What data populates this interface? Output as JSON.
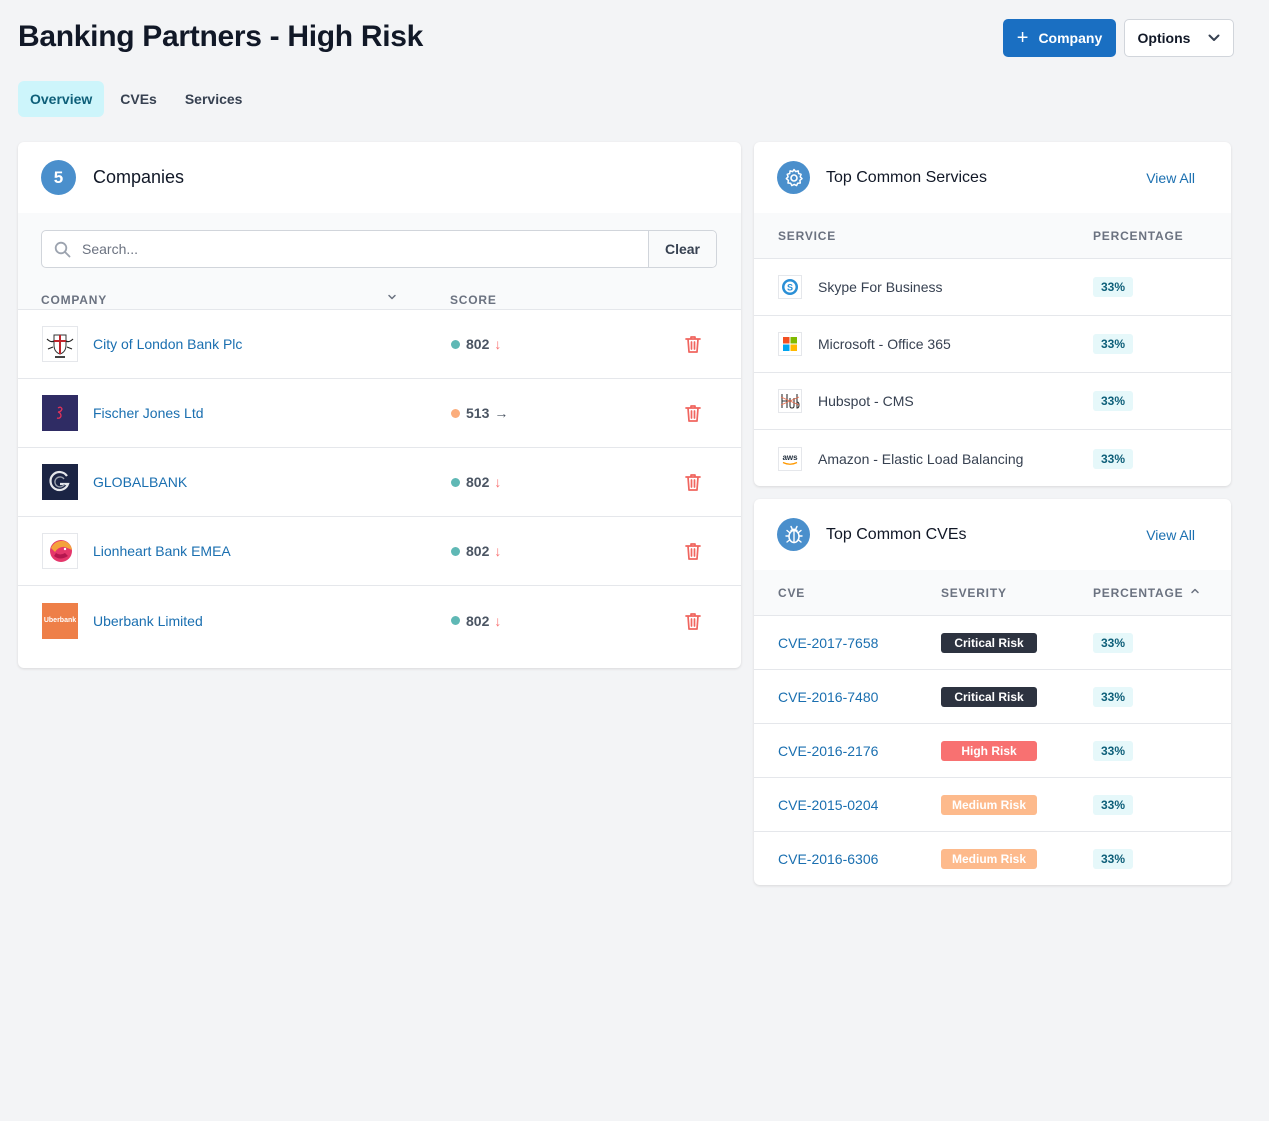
{
  "page": {
    "title": "Banking Partners - High Risk",
    "add_company_label": "Company",
    "options_label": "Options"
  },
  "tabs": [
    {
      "label": "Overview",
      "active": true
    },
    {
      "label": "CVEs",
      "active": false
    },
    {
      "label": "Services",
      "active": false
    }
  ],
  "companies": {
    "count": "5",
    "title": "Companies",
    "search_placeholder": "Search...",
    "clear_label": "Clear",
    "columns": {
      "company": "COMPANY",
      "score": "SCORE"
    },
    "rows": [
      {
        "name": "City of London Bank Plc",
        "score": "802",
        "trend": "down",
        "status_color": "#5fb8b5"
      },
      {
        "name": "Fischer Jones Ltd",
        "score": "513",
        "trend": "flat",
        "status_color": "#fbad7c"
      },
      {
        "name": "GLOBALBANK",
        "score": "802",
        "trend": "down",
        "status_color": "#5fb8b5"
      },
      {
        "name": "Lionheart Bank EMEA",
        "score": "802",
        "trend": "down",
        "status_color": "#5fb8b5"
      },
      {
        "name": "Uberbank Limited",
        "score": "802",
        "trend": "down",
        "status_color": "#5fb8b5"
      }
    ],
    "uberbank_logo_text": "Uberbank"
  },
  "services": {
    "title": "Top Common Services",
    "view_all": "View All",
    "columns": {
      "service": "SERVICE",
      "percentage": "PERCENTAGE"
    },
    "rows": [
      {
        "name": "Skype For Business",
        "percentage": "33%"
      },
      {
        "name": "Microsoft - Office 365",
        "percentage": "33%"
      },
      {
        "name": "Hubspot - CMS",
        "percentage": "33%"
      },
      {
        "name": "Amazon - Elastic Load Balancing",
        "percentage": "33%"
      }
    ],
    "aws_logo_text": "aws",
    "skype_logo_text": "S"
  },
  "cves": {
    "title": "Top Common CVEs",
    "view_all": "View All",
    "columns": {
      "cve": "CVE",
      "severity": "SEVERITY",
      "percentage": "PERCENTAGE"
    },
    "rows": [
      {
        "id": "CVE-2017-7658",
        "severity": "Critical Risk",
        "level": "critical",
        "percentage": "33%"
      },
      {
        "id": "CVE-2016-7480",
        "severity": "Critical Risk",
        "level": "critical",
        "percentage": "33%"
      },
      {
        "id": "CVE-2016-2176",
        "severity": "High Risk",
        "level": "high",
        "percentage": "33%"
      },
      {
        "id": "CVE-2015-0204",
        "severity": "Medium Risk",
        "level": "medium",
        "percentage": "33%"
      },
      {
        "id": "CVE-2016-6306",
        "severity": "Medium Risk",
        "level": "medium",
        "percentage": "33%"
      }
    ]
  },
  "colors": {
    "primary": "#1a6fc2",
    "link": "#1a6fb0",
    "danger": "#f87171",
    "tab_active_bg": "#cdf5fb"
  }
}
